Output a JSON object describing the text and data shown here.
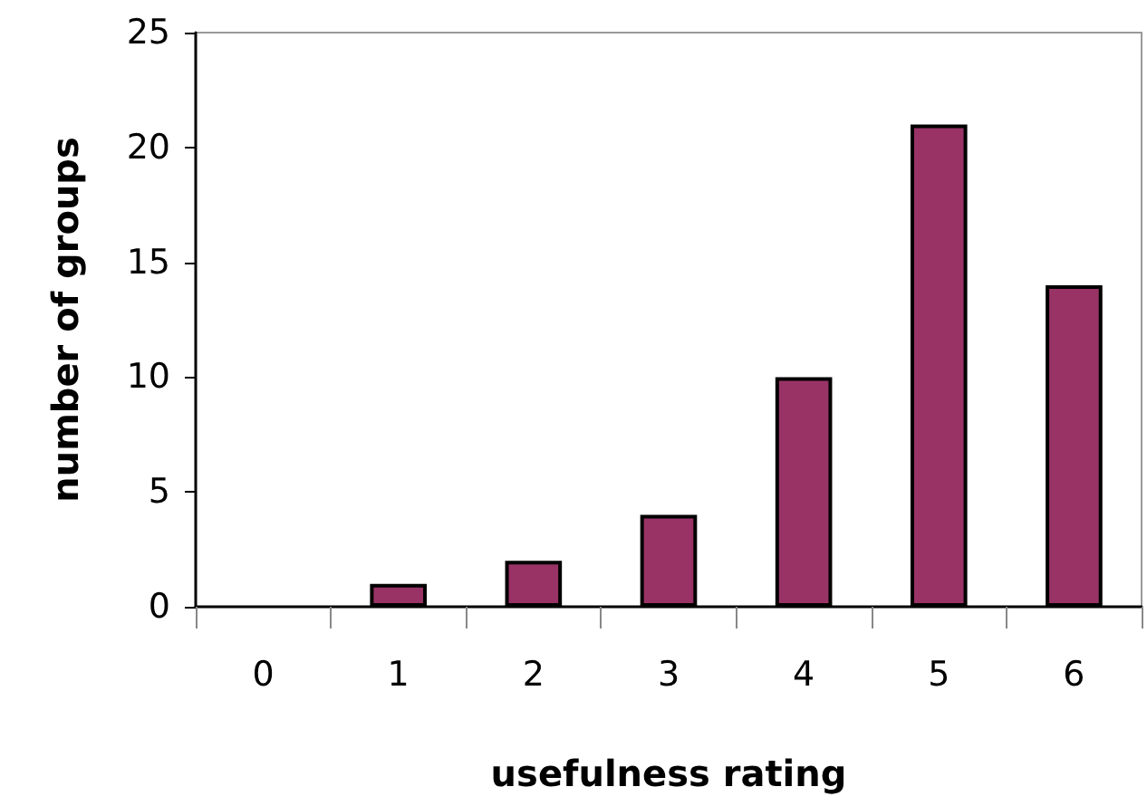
{
  "chart_data": {
    "type": "bar",
    "xlabel": "usefulness rating",
    "ylabel": "number of groups",
    "categories": [
      "0",
      "1",
      "2",
      "3",
      "4",
      "5",
      "6"
    ],
    "values": [
      0,
      1,
      2,
      4,
      10,
      21,
      14
    ],
    "color": "#993366",
    "ylim": [
      0,
      25
    ],
    "yticks": [
      0,
      5,
      10,
      15,
      20,
      25
    ],
    "grid": false
  }
}
